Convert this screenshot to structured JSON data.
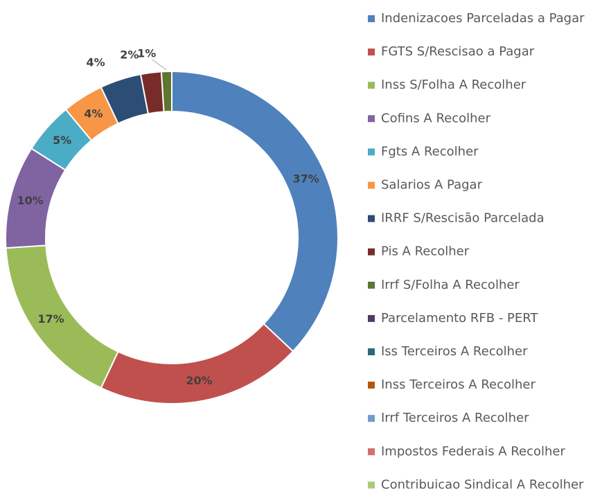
{
  "chart_data": {
    "type": "pie",
    "categories": [
      "Indenizacoes Parceladas a Pagar",
      "FGTS S/Rescisao a Pagar",
      "Inss S/Folha A Recolher",
      "Cofins A Recolher",
      "Fgts A Recolher",
      "Salarios A Pagar",
      "IRRF S/Rescisão Parcelada",
      "Pis A Recolher",
      "Irrf S/Folha A Recolher",
      "Parcelamento RFB - PERT",
      "Iss Terceiros A Recolher",
      "Inss Terceiros A Recolher",
      "Irrf Terceiros A Recolher",
      "Impostos Federais A Recolher",
      "Contribuicao Sindical A Recolher"
    ],
    "values": [
      37,
      20,
      17,
      10,
      5,
      4,
      4,
      2,
      1,
      0,
      0,
      0,
      0,
      0,
      0
    ],
    "value_labels": [
      "37%",
      "20%",
      "17%",
      "10%",
      "5%",
      "4%",
      "4%",
      "2%",
      "1%",
      null,
      null,
      null,
      null,
      null,
      null
    ],
    "colors": [
      "#4f81bd",
      "#c0504d",
      "#9bbb59",
      "#8064a2",
      "#4bacc6",
      "#f79646",
      "#2c4d75",
      "#772c2a",
      "#5f7530",
      "#4d3b62",
      "#276a7c",
      "#b65708",
      "#729aca",
      "#d1706e",
      "#aec97a"
    ],
    "donut": true,
    "legend": "right"
  }
}
